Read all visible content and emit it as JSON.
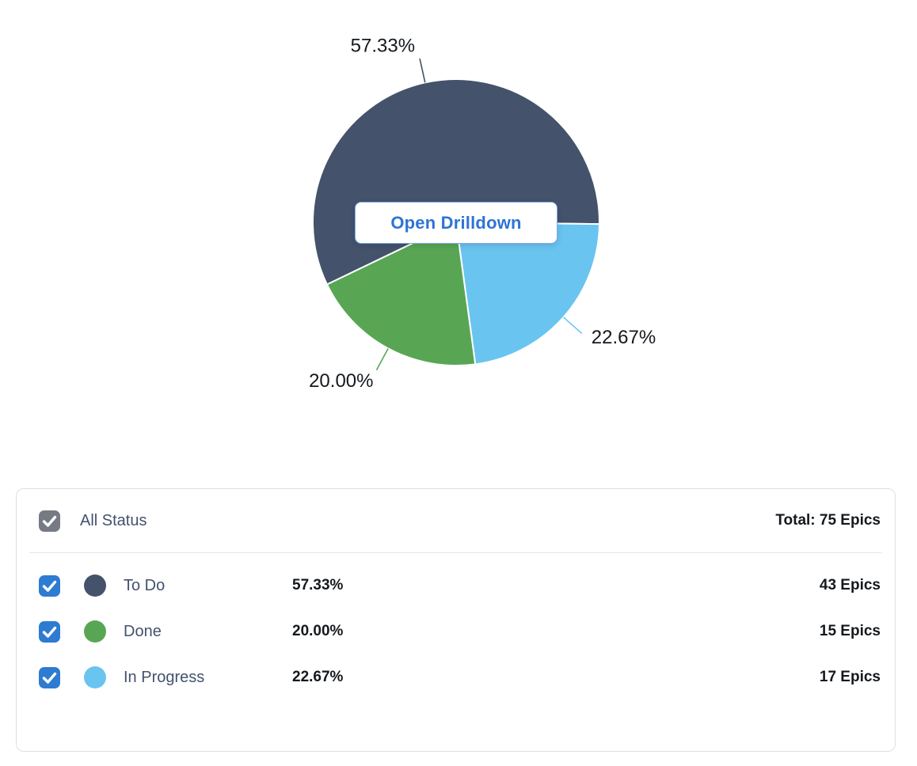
{
  "colors": {
    "checkbox_checked": "#2e7bd2",
    "checkbox_all": "#757a84",
    "button_text": "#2d74d6",
    "button_border": "#7faee9",
    "label_text": "#42526e",
    "value_text": "#15191e"
  },
  "chart_data": {
    "type": "pie",
    "title": "",
    "unit": "Epics",
    "total": 75,
    "center_button_label": "Open Drilldown",
    "start_angle_deg": 244.3,
    "legend_position": "bottom",
    "slices": [
      {
        "label": "To Do",
        "value": 43,
        "percent": 57.33,
        "pct_label": "57.33%",
        "count_label": "43 Epics",
        "color": "#44526b"
      },
      {
        "label": "Done",
        "value": 15,
        "percent": 20.0,
        "pct_label": "20.00%",
        "count_label": "15 Epics",
        "color": "#58a654"
      },
      {
        "label": "In Progress",
        "value": 17,
        "percent": 22.67,
        "pct_label": "22.67%",
        "count_label": "17 Epics",
        "color": "#6ac4f0"
      }
    ]
  },
  "legend": {
    "header": {
      "label": "All Status",
      "total_label": "Total: 75 Epics",
      "checked": true
    }
  }
}
